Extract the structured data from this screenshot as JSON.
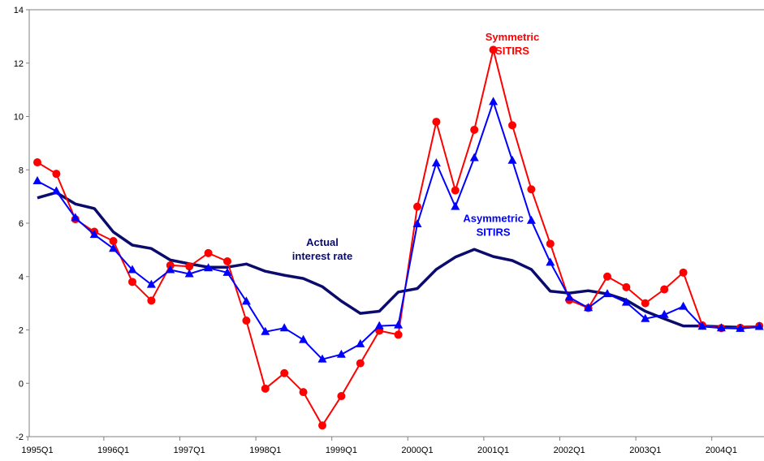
{
  "chart_data": {
    "type": "line",
    "title": "",
    "xlabel": "",
    "ylabel": "",
    "ylim": [
      -2,
      14
    ],
    "yticks": [
      "-2",
      "0",
      "2",
      "4",
      "6",
      "8",
      "10",
      "12",
      "14"
    ],
    "x": [
      "1995Q1",
      "1995Q2",
      "1995Q3",
      "1995Q4",
      "1996Q1",
      "1996Q2",
      "1996Q3",
      "1996Q4",
      "1997Q1",
      "1997Q2",
      "1997Q3",
      "1997Q4",
      "1998Q1",
      "1998Q2",
      "1998Q3",
      "1998Q4",
      "1999Q1",
      "1999Q2",
      "1999Q3",
      "1999Q4",
      "2000Q1",
      "2000Q2",
      "2000Q3",
      "2000Q4",
      "2001Q1",
      "2001Q2",
      "2001Q3",
      "2001Q4",
      "2002Q1",
      "2002Q2",
      "2002Q3",
      "2002Q4",
      "2003Q1",
      "2003Q2",
      "2003Q3",
      "2003Q4",
      "2004Q1",
      "2004Q2",
      "2004Q3"
    ],
    "xtick_labels": [
      "1995Q1",
      "1996Q1",
      "1997Q1",
      "1998Q1",
      "1999Q1",
      "2000Q1",
      "2001Q1",
      "2002Q1",
      "2003Q1",
      "2004Q1"
    ],
    "grid": false,
    "series": [
      {
        "name": "Actual interest rate",
        "color": "#0b0b6e",
        "marker": "none",
        "values": [
          6.95,
          7.15,
          6.72,
          6.55,
          5.67,
          5.18,
          5.05,
          4.62,
          4.48,
          4.35,
          4.35,
          4.47,
          4.2,
          4.05,
          3.93,
          3.62,
          3.08,
          2.62,
          2.7,
          3.42,
          3.55,
          4.27,
          4.73,
          5.02,
          4.75,
          4.6,
          4.27,
          3.45,
          3.38,
          3.47,
          3.35,
          3.12,
          2.7,
          2.42,
          2.15,
          2.15,
          2.12,
          2.1,
          2.12
        ]
      },
      {
        "name": "Symmetric SITIRS",
        "color": "#ff0000",
        "marker": "circle",
        "values": [
          8.28,
          7.85,
          6.15,
          5.68,
          5.33,
          3.8,
          3.1,
          4.42,
          4.38,
          4.88,
          4.57,
          2.35,
          -0.2,
          0.38,
          -0.33,
          -1.58,
          -0.48,
          0.75,
          1.97,
          1.82,
          6.62,
          9.8,
          7.23,
          9.5,
          12.5,
          9.67,
          7.27,
          5.23,
          3.12,
          2.82,
          4.0,
          3.6,
          3.0,
          3.52,
          4.15,
          2.17,
          2.07,
          2.08,
          2.15
        ]
      },
      {
        "name": "Asymmetric SITIRS",
        "color": "#0000ff",
        "marker": "triangle",
        "values": [
          7.58,
          7.2,
          6.2,
          5.57,
          5.05,
          4.25,
          3.7,
          4.25,
          4.1,
          4.32,
          4.15,
          3.07,
          1.93,
          2.07,
          1.63,
          0.9,
          1.08,
          1.47,
          2.15,
          2.18,
          5.97,
          8.25,
          6.62,
          8.45,
          10.55,
          8.35,
          6.1,
          4.53,
          3.22,
          2.83,
          3.35,
          3.03,
          2.42,
          2.57,
          2.88,
          2.13,
          2.07,
          2.05,
          2.12
        ]
      }
    ],
    "annotations": [
      {
        "line1": "Actual",
        "line2": "interest rate",
        "color": "#0b0b6e",
        "x": "1998Q4",
        "y": 5.15
      },
      {
        "line1": "Symmetric",
        "line2": "SITIRS",
        "color": "#ff0000",
        "x": "2001Q2",
        "y": 12.85
      },
      {
        "line1": "Asymmetric",
        "line2": "SITIRS",
        "color": "#0000ff",
        "x": "2001Q1",
        "y": 6.05
      }
    ]
  }
}
